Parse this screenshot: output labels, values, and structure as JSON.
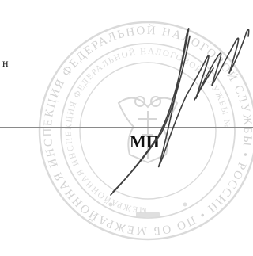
{
  "document": {
    "edge_fragment": "н",
    "stamp_place_label": "МП",
    "seal_text": "МЕЖРАЙОННАЯ ИНСПЕКЦИЯ ФЕДЕРАЛЬНОЙ НАЛОГОВОЙ СЛУЖБЫ",
    "seal_color": "#c9c9c9",
    "ink_color": "#3a3a3a",
    "signature_color": "#4a4a4a"
  }
}
